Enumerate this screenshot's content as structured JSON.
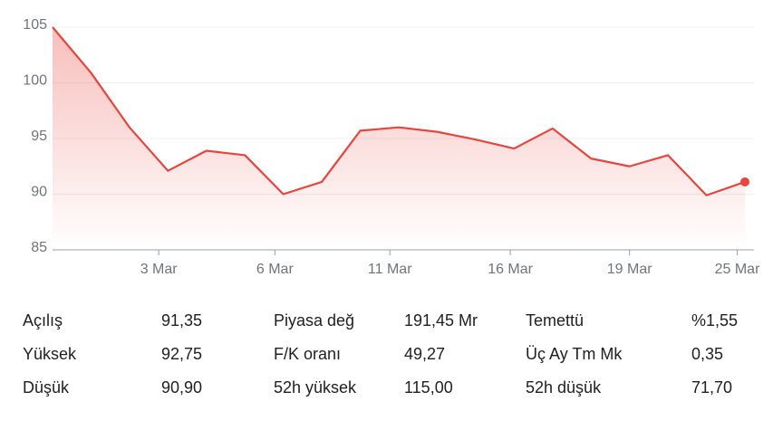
{
  "chart_data": {
    "type": "line",
    "x": [
      0,
      1,
      2,
      3,
      4,
      5,
      6,
      7,
      8,
      9,
      10,
      11,
      12,
      13,
      14,
      15,
      16,
      17,
      18
    ],
    "values": [
      105,
      100.9,
      96.0,
      92.1,
      93.9,
      93.5,
      90.0,
      91.1,
      95.7,
      96.0,
      95.6,
      94.9,
      94.1,
      95.9,
      93.2,
      92.5,
      93.5,
      89.9,
      91.1
    ],
    "color": "#e8453c",
    "xlim": [
      0,
      18
    ],
    "xticks": [
      {
        "value": 2.76,
        "label": "3 Mar"
      },
      {
        "value": 5.78,
        "label": "6 Mar"
      },
      {
        "value": 8.77,
        "label": "11 Mar"
      },
      {
        "value": 11.9,
        "label": "16 Mar"
      },
      {
        "value": 15.0,
        "label": "19 Mar"
      },
      {
        "value": 17.8,
        "label": "25 Mar"
      }
    ],
    "ylim": [
      85,
      105
    ],
    "yticks": [
      85,
      90,
      95,
      100,
      105
    ],
    "grid": true
  },
  "stats": [
    [
      {
        "label": "Açılış",
        "value": "91,35"
      },
      {
        "label": "Yüksek",
        "value": "92,75"
      },
      {
        "label": "Düşük",
        "value": "90,90"
      }
    ],
    [
      {
        "label": "Piyasa değ",
        "value": "191,45 Mr"
      },
      {
        "label": "F/K oranı",
        "value": "49,27"
      },
      {
        "label": "52h yüksek",
        "value": "115,00"
      }
    ],
    [
      {
        "label": "Temettü",
        "value": "%1,55"
      },
      {
        "label": "Üç Ay Tm Mk",
        "value": "0,35"
      },
      {
        "label": "52h düşük",
        "value": "71,70"
      }
    ]
  ]
}
